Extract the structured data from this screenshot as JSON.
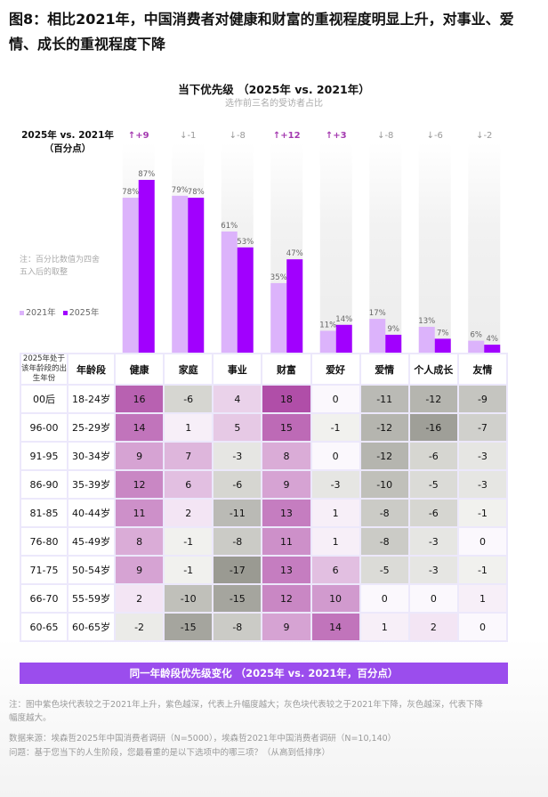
{
  "title": "图8：相比2021年，中国消费者对健康和财富的重视程度明显上升，对事业、爱情、成长的重视程度下降",
  "chart_data": [
    {
      "type": "bar",
      "title": "当下优先级 （2025年 vs. 2021年）",
      "subtitle": "选作前三名的受访者占比",
      "change_header": "2025年 vs. 2021年（百分点）",
      "categories": [
        "健康",
        "家庭",
        "事业",
        "财富",
        "爱好",
        "爱情",
        "个人成长",
        "友情"
      ],
      "series": [
        {
          "name": "2021年",
          "color": "#dcb3fb",
          "values": [
            78,
            79,
            61,
            35,
            11,
            17,
            13,
            6
          ]
        },
        {
          "name": "2025年",
          "color": "#a100fe",
          "values": [
            87,
            78,
            53,
            47,
            14,
            9,
            7,
            4
          ]
        }
      ],
      "changes": [
        "↑+9",
        "↓-1",
        "↓-8",
        "↑+12",
        "↑+3",
        "↓-8",
        "↓-6",
        "↓-2"
      ],
      "change_colors": {
        "up": "#a43ab0",
        "down": "#999999"
      },
      "unit": "%",
      "ylim": [
        0,
        100
      ],
      "note": "注：百分比数值为四舍五入后的取整"
    },
    {
      "type": "heatmap",
      "title": "同一年龄段优先级变化 （2025年 vs. 2021年，百分点）",
      "row_header_birth": "2025年处于该年龄段的出生年份",
      "row_header_age": "年龄段",
      "columns": [
        "健康",
        "家庭",
        "事业",
        "财富",
        "爱好",
        "爱情",
        "个人成长",
        "友情"
      ],
      "rows": [
        {
          "birth": "00后",
          "age": "18-24岁",
          "values": [
            16,
            -6,
            4,
            18,
            0,
            -11,
            -12,
            -9
          ]
        },
        {
          "birth": "96-00",
          "age": "25-29岁",
          "values": [
            14,
            1,
            5,
            15,
            -1,
            -12,
            -16,
            -7
          ]
        },
        {
          "birth": "91-95",
          "age": "30-34岁",
          "values": [
            9,
            7,
            -3,
            8,
            0,
            -12,
            -6,
            -3
          ]
        },
        {
          "birth": "86-90",
          "age": "35-39岁",
          "values": [
            12,
            6,
            -6,
            9,
            -3,
            -10,
            -5,
            -3
          ]
        },
        {
          "birth": "81-85",
          "age": "40-44岁",
          "values": [
            11,
            2,
            -11,
            13,
            1,
            -8,
            -6,
            -1
          ]
        },
        {
          "birth": "76-80",
          "age": "45-49岁",
          "values": [
            8,
            -1,
            -8,
            11,
            1,
            -8,
            -3,
            0
          ]
        },
        {
          "birth": "71-75",
          "age": "50-54岁",
          "values": [
            9,
            -1,
            -17,
            13,
            6,
            -5,
            -3,
            -1
          ]
        },
        {
          "birth": "66-70",
          "age": "55-59岁",
          "values": [
            2,
            -10,
            -15,
            12,
            10,
            0,
            0,
            1
          ]
        },
        {
          "birth": "60-65",
          "age": "60-65岁",
          "values": [
            -2,
            -15,
            -8,
            9,
            14,
            1,
            2,
            0
          ]
        }
      ],
      "colors": {
        "positive_max": "#b04ea8",
        "negative_max": "#9a9a92",
        "neutral": "#fbf8fd"
      }
    }
  ],
  "footer": {
    "note": "注：图中紫色块代表较之于2021年上升，紫色越深，代表上升幅度越大；灰色块代表较之于2021年下降，灰色越深，代表下降幅度越大。",
    "source": "数据来源：埃森哲2025年中国消费者调研（N=5000），埃森哲2021年中国消费者调研（N=10,140）",
    "question": "问题：基于您当下的人生阶段，您最看重的是以下选项中的哪三项？（从高到低排序）"
  }
}
